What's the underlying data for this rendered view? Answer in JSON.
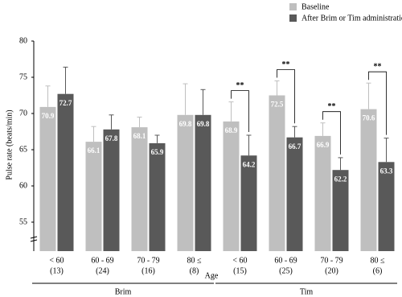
{
  "chart_data": {
    "type": "bar",
    "y_label": "Pulse rate (beats/min)",
    "x_label": "Age",
    "categories": [
      "< 60",
      "60 - 69",
      "70 - 79",
      "80 ≤",
      "< 60",
      "60 - 69",
      "70 - 79",
      "80 ≤"
    ],
    "counts": [
      "(13)",
      "(24)",
      "(16)",
      "(8)",
      "(15)",
      "(25)",
      "(20)",
      "(6)"
    ],
    "groups": [
      {
        "name": "Brim",
        "span": [
          0,
          3
        ]
      },
      {
        "name": "Tim",
        "span": [
          4,
          7
        ]
      }
    ],
    "series": [
      {
        "name": "Baseline",
        "color": "#bfbfbf",
        "values": [
          70.9,
          66.1,
          68.1,
          69.8,
          68.9,
          72.5,
          66.9,
          70.6
        ],
        "errors": [
          2.9,
          2.1,
          1.4,
          4.3,
          2.7,
          2.0,
          1.8,
          3.6
        ]
      },
      {
        "name": "After Brim or Tim administration",
        "color": "#595959",
        "values": [
          72.7,
          67.8,
          65.9,
          69.8,
          64.2,
          66.7,
          62.2,
          63.3
        ],
        "errors": [
          3.7,
          2.0,
          1.1,
          3.5,
          2.8,
          1.5,
          1.7,
          3.3
        ]
      }
    ],
    "significance": [
      null,
      null,
      null,
      null,
      "**",
      "**",
      "**",
      "**"
    ],
    "ylim": [
      51,
      80
    ],
    "yticks": [
      55,
      60,
      65,
      70,
      75,
      80
    ],
    "grid": false
  }
}
